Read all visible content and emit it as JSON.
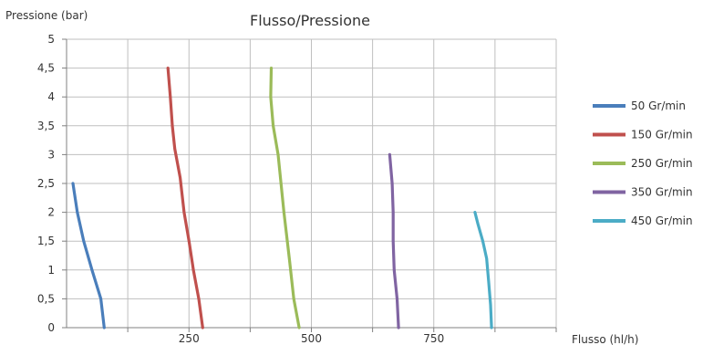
{
  "chart_data": {
    "type": "line",
    "title": "Flusso/Pressione",
    "xlabel": "Flusso (hl/h)",
    "ylabel": "Pressione (bar)",
    "xlim": [
      0,
      1000
    ],
    "ylim": [
      0,
      5
    ],
    "x_ticks": [
      {
        "value": 250,
        "label": "250"
      },
      {
        "value": 500,
        "label": "500"
      },
      {
        "value": 750,
        "label": "750"
      }
    ],
    "y_ticks": [
      {
        "value": 0,
        "label": "0"
      },
      {
        "value": 0.5,
        "label": "0,5"
      },
      {
        "value": 1,
        "label": "1"
      },
      {
        "value": 1.5,
        "label": "1,5"
      },
      {
        "value": 2,
        "label": "2"
      },
      {
        "value": 2.5,
        "label": "2,5"
      },
      {
        "value": 3,
        "label": "3"
      },
      {
        "value": 3.5,
        "label": "3,5"
      },
      {
        "value": 4,
        "label": "4"
      },
      {
        "value": 4.5,
        "label": "4,5"
      },
      {
        "value": 5,
        "label": "5"
      }
    ],
    "grid": true,
    "legend_position": "right",
    "series": [
      {
        "name": "50 Gr/min",
        "color": "#4a7ebb",
        "x": [
          13,
          22,
          35,
          52,
          70,
          77
        ],
        "y": [
          2.5,
          2.0,
          1.5,
          1.0,
          0.5,
          0.0
        ]
      },
      {
        "name": "150 Gr/min",
        "color": "#c0504d",
        "x": [
          207,
          212,
          216,
          221,
          232,
          240,
          250,
          259,
          270,
          278
        ],
        "y": [
          4.5,
          4.0,
          3.5,
          3.1,
          2.6,
          2.0,
          1.5,
          1.0,
          0.5,
          0.0
        ]
      },
      {
        "name": "250 Gr/min",
        "color": "#9bbb59",
        "x": [
          418,
          417,
          422,
          432,
          444,
          455,
          464,
          475
        ],
        "y": [
          4.5,
          4.0,
          3.5,
          3.0,
          2.0,
          1.2,
          0.5,
          0.0
        ]
      },
      {
        "name": "350 Gr/min",
        "color": "#8064a2",
        "x": [
          660,
          665,
          667,
          667,
          669,
          675,
          678
        ],
        "y": [
          3.0,
          2.5,
          2.0,
          1.5,
          1.0,
          0.5,
          0.0
        ]
      },
      {
        "name": "450 Gr/min",
        "color": "#4bacc6",
        "x": [
          834,
          840,
          850,
          858,
          862,
          866,
          868
        ],
        "y": [
          2.0,
          1.8,
          1.5,
          1.2,
          0.8,
          0.4,
          0.0
        ]
      }
    ]
  }
}
